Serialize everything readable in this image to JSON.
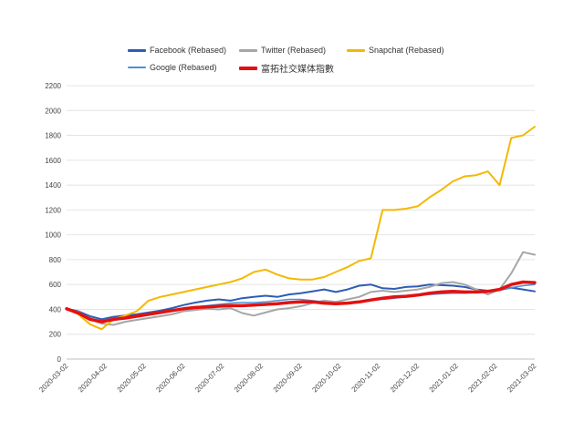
{
  "chart_data": {
    "type": "line",
    "title": "",
    "xlabel": "",
    "ylabel": "",
    "ylim": [
      0,
      2200
    ],
    "y_ticks": [
      "0",
      "200",
      "400",
      "600",
      "800",
      "1000",
      "1200",
      "1400",
      "1600",
      "1800",
      "2000",
      "2200"
    ],
    "x_tick_labels": [
      "2020-03-02",
      "2020-04-02",
      "2020-05-02",
      "2020-06-02",
      "2020-07-02",
      "2020-08-02",
      "2020-09-02",
      "2020-10-02",
      "2020-11-02",
      "2020-12-02",
      "2021-01-02",
      "2021-02-02",
      "2021-03-02"
    ],
    "grid": "horizontal",
    "legend_position": "top",
    "series": [
      {
        "name": "Facebook (Rebased)",
        "color": "#2e5db3",
        "width": 2,
        "values": [
          405,
          385,
          345,
          320,
          340,
          350,
          360,
          375,
          390,
          410,
          435,
          455,
          470,
          480,
          470,
          490,
          500,
          510,
          500,
          520,
          530,
          545,
          560,
          540,
          560,
          590,
          600,
          570,
          565,
          580,
          585,
          600,
          595,
          590,
          580,
          560,
          550,
          555,
          575,
          560,
          545
        ]
      },
      {
        "name": "Twitter (Rebased)",
        "color": "#a6a6a6",
        "width": 2,
        "values": [
          405,
          380,
          320,
          285,
          275,
          300,
          315,
          330,
          345,
          360,
          385,
          395,
          405,
          400,
          410,
          370,
          350,
          375,
          400,
          410,
          425,
          450,
          470,
          460,
          480,
          500,
          540,
          550,
          540,
          550,
          560,
          580,
          610,
          620,
          600,
          560,
          520,
          560,
          690,
          860,
          840
        ]
      },
      {
        "name": "Snapchat (Rebased)",
        "color": "#f5b800",
        "width": 2,
        "values": [
          405,
          360,
          280,
          240,
          320,
          350,
          385,
          470,
          500,
          520,
          540,
          560,
          580,
          600,
          620,
          650,
          700,
          720,
          680,
          650,
          640,
          640,
          660,
          700,
          740,
          790,
          810,
          1200,
          1200,
          1210,
          1230,
          1300,
          1360,
          1430,
          1470,
          1480,
          1510,
          1400,
          1780,
          1800,
          1870
        ]
      },
      {
        "name": "Google (Rebased)",
        "color": "#4a90d9",
        "width": 1.5,
        "values": [
          405,
          375,
          330,
          300,
          310,
          330,
          345,
          365,
          380,
          395,
          410,
          420,
          430,
          440,
          450,
          455,
          455,
          460,
          470,
          480,
          480,
          470,
          460,
          450,
          455,
          460,
          470,
          480,
          490,
          500,
          510,
          520,
          525,
          530,
          530,
          535,
          540,
          555,
          575,
          590,
          600
        ]
      },
      {
        "name": "富拓社交媒体指數",
        "color": "#e41010",
        "width": 3.5,
        "values": [
          405,
          370,
          320,
          300,
          320,
          330,
          345,
          360,
          375,
          390,
          405,
          415,
          420,
          425,
          430,
          430,
          435,
          440,
          445,
          455,
          460,
          460,
          450,
          445,
          450,
          460,
          475,
          490,
          500,
          505,
          515,
          530,
          540,
          545,
          540,
          540,
          545,
          560,
          600,
          620,
          615
        ]
      }
    ]
  }
}
